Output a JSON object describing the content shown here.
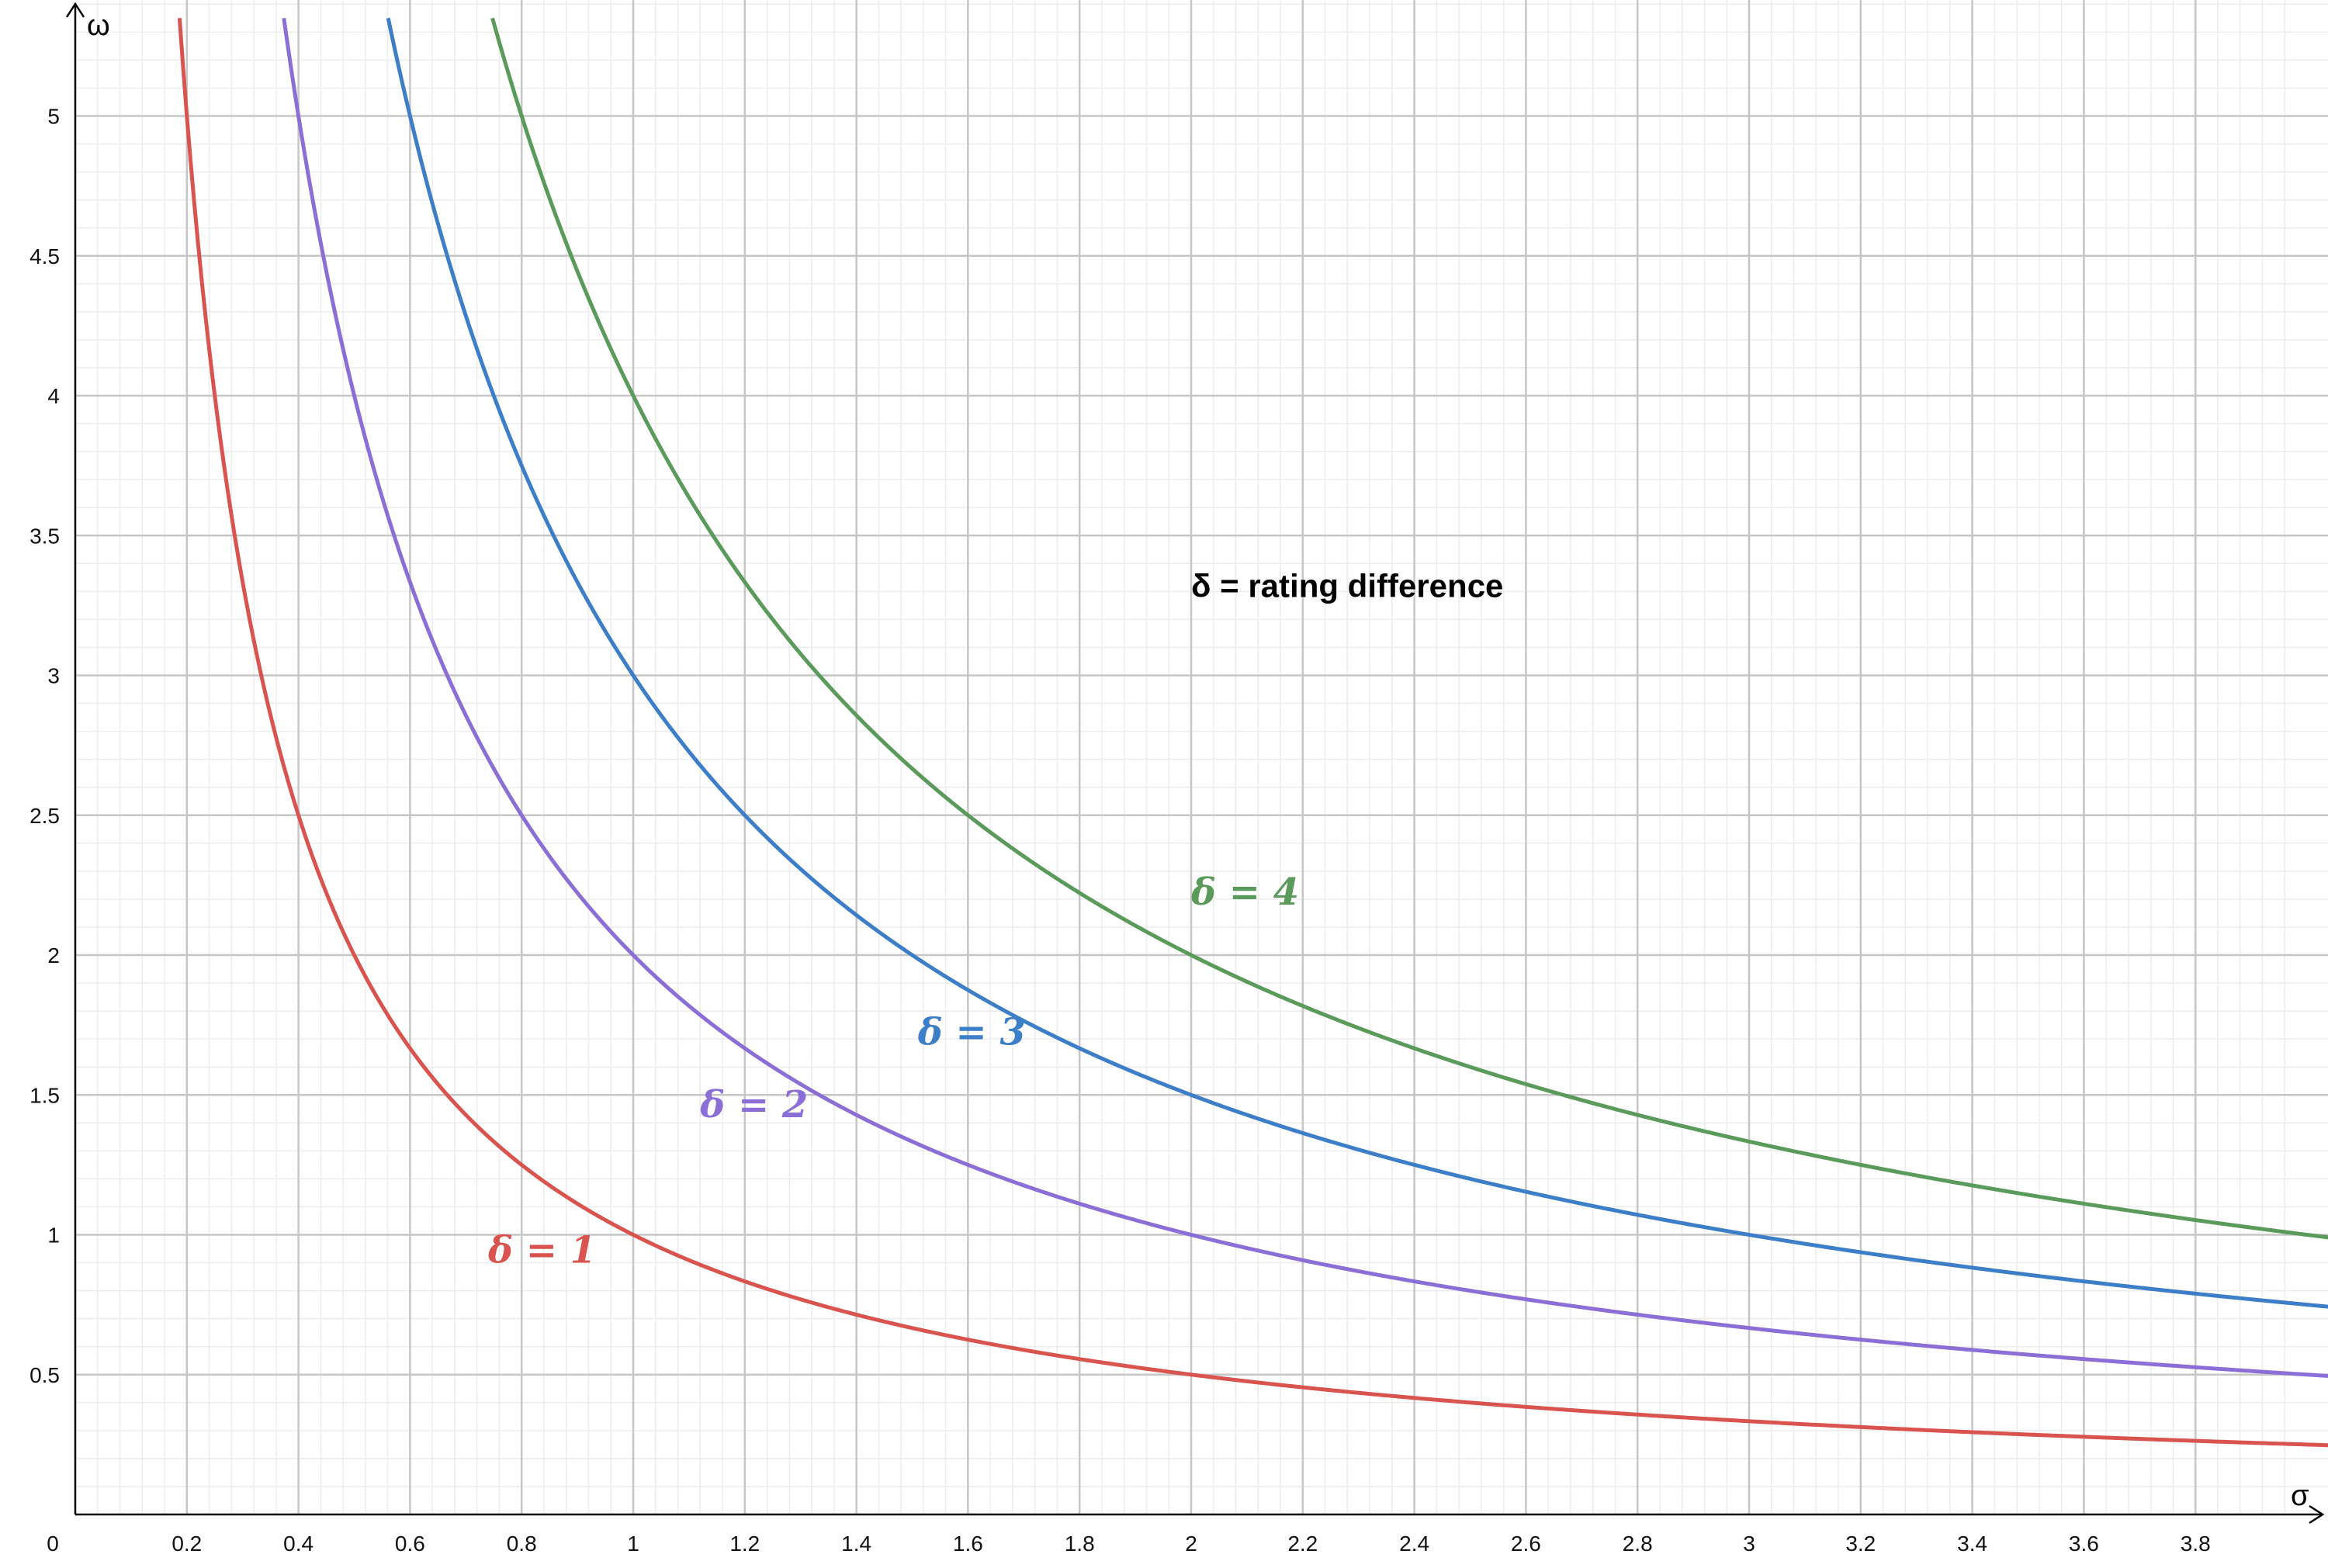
{
  "chart_data": {
    "type": "line",
    "title": "",
    "xlabel": "σ",
    "ylabel": "ω",
    "origin_label": "0",
    "xlim": [
      0,
      4.15
    ],
    "ylim": [
      0,
      5.4
    ],
    "x_ticks": [
      0.2,
      0.4,
      0.6,
      0.8,
      1,
      1.2,
      1.4,
      1.6,
      1.8,
      2,
      2.2,
      2.4,
      2.6,
      2.8,
      3,
      3.2,
      3.4,
      3.6,
      3.8
    ],
    "x_tick_labels": [
      "0.2",
      "0.4",
      "0.6",
      "0.8",
      "1",
      "1.2",
      "1.4",
      "1.6",
      "1.8",
      "2",
      "2.2",
      "2.4",
      "2.6",
      "2.8",
      "3",
      "3.2",
      "3.4",
      "3.6",
      "3.8"
    ],
    "y_ticks": [
      0.5,
      1,
      1.5,
      2,
      2.5,
      3,
      3.5,
      4,
      4.5,
      5
    ],
    "y_tick_labels": [
      "0.5",
      "1",
      "1.5",
      "2",
      "2.5",
      "3",
      "3.5",
      "4",
      "4.5",
      "5"
    ],
    "grid": true,
    "annotation": {
      "text": "δ = rating difference",
      "x": 2.0,
      "y": 3.28
    },
    "series": [
      {
        "name": "δ = 1",
        "delta": 1,
        "color": "#d9534f",
        "x": [
          0.19,
          0.2,
          0.25,
          0.3,
          0.4,
          0.5,
          0.6,
          0.8,
          1,
          1.2,
          1.4,
          1.6,
          2,
          2.4,
          3,
          3.5,
          4
        ],
        "y": [
          5.26,
          5,
          4,
          3.33,
          2.5,
          2,
          1.67,
          1.25,
          1,
          0.83,
          0.71,
          0.63,
          0.5,
          0.42,
          0.33,
          0.29,
          0.25
        ],
        "label_pos": {
          "x": 0.74,
          "y": 0.9
        }
      },
      {
        "name": "δ = 2",
        "delta": 2,
        "color": "#8b6fd6",
        "x": [
          0.38,
          0.4,
          0.5,
          0.6,
          0.8,
          1,
          1.2,
          1.4,
          1.6,
          2,
          2.4,
          3,
          3.5,
          4
        ],
        "y": [
          5.26,
          5,
          4,
          3.33,
          2.5,
          2,
          1.67,
          1.43,
          1.25,
          1,
          0.83,
          0.67,
          0.57,
          0.5
        ],
        "label_pos": {
          "x": 1.12,
          "y": 1.42
        }
      },
      {
        "name": "δ = 3",
        "delta": 3,
        "color": "#3d7ec8",
        "x": [
          0.57,
          0.6,
          0.75,
          0.8,
          1,
          1.2,
          1.5,
          2,
          2.5,
          3,
          3.5,
          4
        ],
        "y": [
          5.26,
          5,
          4,
          3.75,
          3,
          2.5,
          2,
          1.5,
          1.2,
          1,
          0.86,
          0.75
        ],
        "label_pos": {
          "x": 1.51,
          "y": 1.68
        }
      },
      {
        "name": "δ = 4",
        "delta": 4,
        "color": "#5a9a5a",
        "x": [
          0.76,
          0.8,
          1,
          1.2,
          1.6,
          2,
          2.5,
          3,
          3.5,
          4
        ],
        "y": [
          5.26,
          5,
          4,
          3.33,
          2.5,
          2,
          1.6,
          1.33,
          1.14,
          1
        ],
        "label_pos": {
          "x": 2.0,
          "y": 2.18
        }
      }
    ]
  }
}
